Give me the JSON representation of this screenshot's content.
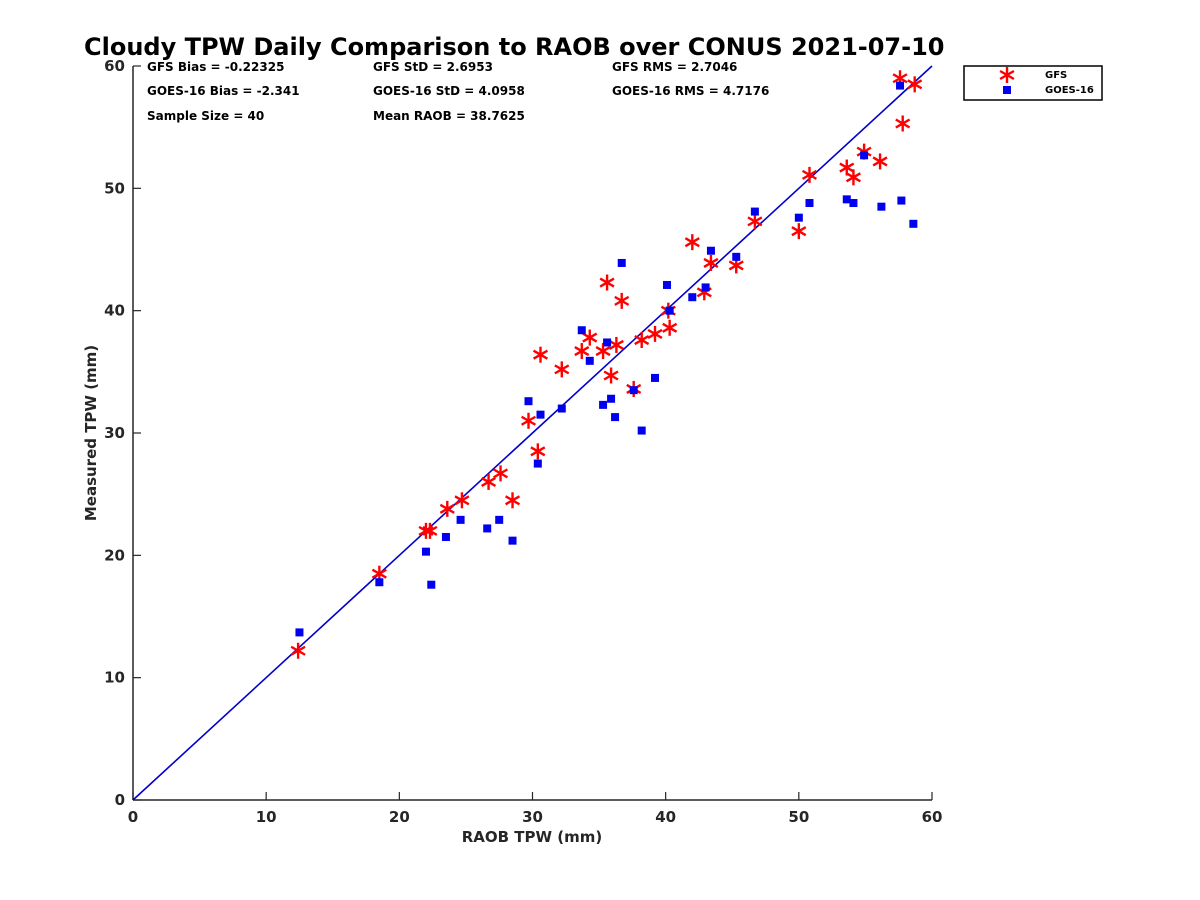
{
  "chart_data": {
    "type": "scatter",
    "title": "Cloudy TPW Daily Comparison to RAOB over CONUS 2021-07-10",
    "xlabel": "RAOB TPW (mm)",
    "ylabel": "Measured TPW (mm)",
    "xlim": [
      0,
      60
    ],
    "ylim": [
      0,
      60
    ],
    "xticks": [
      "0",
      "10",
      "20",
      "30",
      "40",
      "50",
      "60"
    ],
    "yticks": [
      "0",
      "10",
      "20",
      "30",
      "40",
      "50",
      "60"
    ],
    "grid": false,
    "legend_position": "outside-top-right",
    "reference_line": {
      "type": "1:1",
      "color": "#0000cc"
    },
    "stats": [
      [
        "GFS Bias = -0.22325",
        "GFS StD = 2.6953",
        "GFS RMS = 2.7046"
      ],
      [
        "GOES-16 Bias = -2.341",
        "GOES-16 StD = 4.0958",
        "GOES-16 RMS = 4.7176"
      ],
      [
        "Sample Size = 40",
        "Mean RAOB = 38.7625",
        ""
      ]
    ],
    "series": [
      {
        "name": "GFS",
        "marker": "asterisk",
        "color": "#ff0000",
        "x": [
          12.4,
          18.5,
          22.0,
          22.3,
          23.6,
          24.7,
          26.7,
          27.6,
          28.5,
          29.7,
          30.4,
          30.6,
          32.2,
          33.7,
          34.3,
          35.3,
          35.6,
          35.9,
          36.3,
          36.7,
          37.6,
          38.2,
          39.2,
          40.2,
          40.3,
          42.0,
          42.9,
          43.4,
          45.3,
          46.7,
          50.0,
          50.8,
          53.6,
          54.1,
          54.9,
          56.1,
          57.6,
          57.8,
          58.7
        ],
        "y": [
          12.2,
          18.5,
          22.0,
          22.0,
          23.8,
          24.5,
          26.0,
          26.7,
          24.5,
          31.0,
          28.5,
          36.4,
          35.2,
          36.7,
          37.8,
          36.7,
          42.3,
          34.7,
          37.2,
          40.8,
          33.6,
          37.6,
          38.1,
          40.0,
          38.6,
          45.6,
          41.5,
          43.9,
          43.7,
          47.3,
          46.5,
          51.1,
          51.7,
          50.9,
          53.0,
          52.2,
          59.0,
          55.3,
          58.5
        ]
      },
      {
        "name": "GOES-16",
        "marker": "square",
        "color": "#0000ee",
        "x": [
          12.5,
          18.5,
          22.0,
          22.4,
          23.5,
          24.6,
          26.6,
          27.5,
          28.5,
          29.7,
          30.4,
          30.6,
          32.2,
          33.7,
          34.3,
          35.3,
          35.6,
          35.9,
          36.2,
          36.7,
          37.6,
          38.2,
          39.2,
          40.1,
          40.3,
          42.0,
          43.0,
          43.4,
          45.3,
          46.7,
          50.0,
          50.8,
          53.6,
          54.1,
          54.9,
          56.2,
          57.6,
          57.7,
          58.6
        ],
        "y": [
          13.7,
          17.8,
          20.3,
          17.6,
          21.5,
          22.9,
          22.2,
          22.9,
          21.2,
          32.6,
          27.5,
          31.5,
          32.0,
          38.4,
          35.9,
          32.3,
          37.4,
          32.8,
          31.3,
          43.9,
          33.5,
          30.2,
          34.5,
          42.1,
          40.0,
          41.1,
          41.9,
          44.9,
          44.4,
          48.1,
          47.6,
          48.8,
          49.1,
          48.8,
          52.7,
          48.5,
          58.4,
          49.0,
          47.1
        ]
      }
    ]
  }
}
